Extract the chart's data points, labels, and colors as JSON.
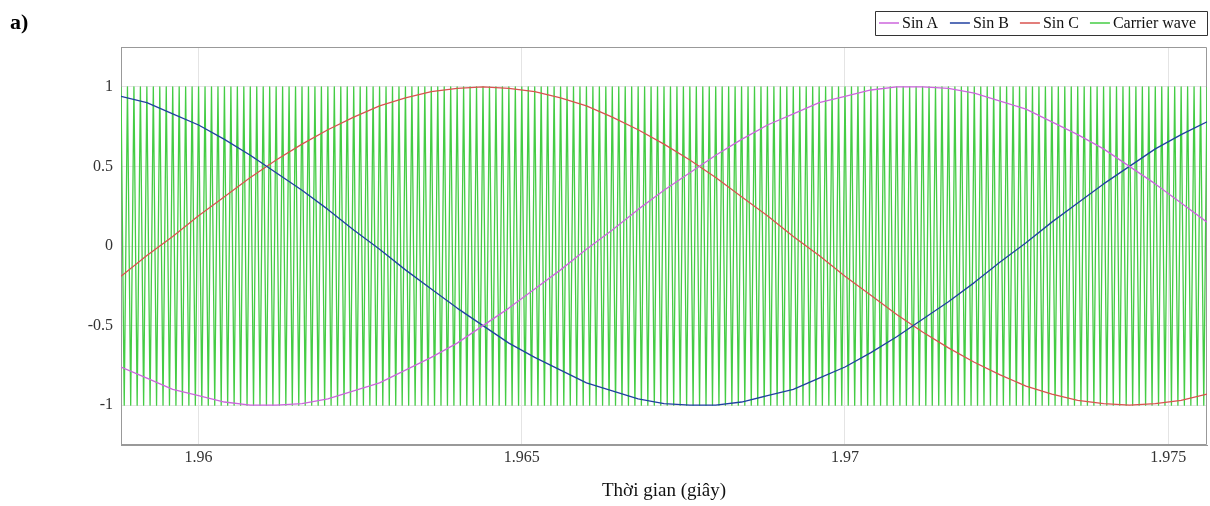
{
  "chart_data": {
    "type": "line",
    "annotations": [
      "a)"
    ],
    "xlabel": "Thời gian (giây)",
    "xlim": [
      1.9588,
      1.9756
    ],
    "xticks": [
      1.96,
      1.965,
      1.97,
      1.975
    ],
    "ylim": [
      -1.25,
      1.25
    ],
    "yticks": [
      -1,
      -0.5,
      0,
      0.5,
      1
    ],
    "grid": true,
    "legend": "top right",
    "marker": "none",
    "line_style": "solid",
    "x": [
      1.9588,
      1.9592,
      1.9596,
      1.96,
      1.9604,
      1.9608,
      1.9612,
      1.9616,
      1.962,
      1.9624,
      1.9628,
      1.9632,
      1.9636,
      1.964,
      1.9644,
      1.9648,
      1.9652,
      1.9656,
      1.966,
      1.9664,
      1.9668,
      1.9672,
      1.9676,
      1.968,
      1.9684,
      1.9688,
      1.9692,
      1.9696,
      1.97,
      1.9704,
      1.9708,
      1.9712,
      1.9716,
      1.972,
      1.9724,
      1.9728,
      1.9732,
      1.9736,
      1.974,
      1.9744,
      1.9748,
      1.9752,
      1.9756
    ],
    "series": [
      {
        "name": "Sin A",
        "color": "#cc66dd",
        "values": [
          -0.76,
          -0.83,
          -0.9,
          -0.94,
          -0.98,
          -1,
          -1,
          -0.99,
          -0.96,
          -0.91,
          -0.86,
          -0.78,
          -0.7,
          -0.61,
          -0.5,
          -0.39,
          -0.27,
          -0.15,
          -0.02,
          0.1,
          0.23,
          0.35,
          0.46,
          0.57,
          0.67,
          0.76,
          0.83,
          0.9,
          0.94,
          0.98,
          1,
          1,
          0.99,
          0.96,
          0.91,
          0.86,
          0.78,
          0.7,
          0.61,
          0.5,
          0.39,
          0.27,
          0.15
        ]
      },
      {
        "name": "Sin B",
        "color": "#2040a0",
        "values": [
          0.94,
          0.9,
          0.83,
          0.76,
          0.67,
          0.57,
          0.46,
          0.35,
          0.23,
          0.1,
          -0.02,
          -0.15,
          -0.27,
          -0.39,
          -0.5,
          -0.61,
          -0.7,
          -0.78,
          -0.86,
          -0.91,
          -0.96,
          -0.99,
          -1,
          -1,
          -0.98,
          -0.94,
          -0.9,
          -0.83,
          -0.76,
          -0.67,
          -0.57,
          -0.46,
          -0.35,
          -0.23,
          -0.1,
          0.02,
          0.15,
          0.27,
          0.39,
          0.5,
          0.61,
          0.7,
          0.78
        ]
      },
      {
        "name": "Sin C",
        "color": "#d9534f",
        "values": [
          -0.19,
          -0.06,
          0.06,
          0.19,
          0.31,
          0.43,
          0.54,
          0.64,
          0.73,
          0.81,
          0.88,
          0.93,
          0.97,
          0.99,
          1,
          0.99,
          0.97,
          0.93,
          0.88,
          0.81,
          0.73,
          0.64,
          0.54,
          0.43,
          0.31,
          0.19,
          0.06,
          -0.06,
          -0.19,
          -0.31,
          -0.43,
          -0.54,
          -0.64,
          -0.73,
          -0.81,
          -0.88,
          -0.93,
          -0.97,
          -0.99,
          -1,
          -0.99,
          -0.97,
          -0.93
        ]
      },
      {
        "name": "Carrier wave",
        "color": "#44cc44",
        "x": [
          1.9588,
          1.95885,
          1.9589,
          1.95895,
          1.959,
          1.95905,
          1.9591,
          1.95915,
          1.9592,
          1.95925,
          1.9593,
          1.95935,
          1.9594,
          1.95945,
          1.9595,
          1.95955,
          1.9596,
          1.95965,
          1.9597,
          1.95975,
          1.9598,
          1.95985,
          1.9599,
          1.95995,
          1.96,
          1.96005,
          1.9601,
          1.96015,
          1.9602,
          1.96025,
          1.9603,
          1.96035,
          1.9604,
          1.96045,
          1.9605,
          1.96055,
          1.9606,
          1.96065,
          1.9607,
          1.96075,
          1.9608,
          1.96085,
          1.9609,
          1.96095,
          1.961,
          1.96105,
          1.9611,
          1.96115,
          1.9612,
          1.96125,
          1.9613,
          1.96135,
          1.9614,
          1.96145,
          1.9615,
          1.96155,
          1.9616,
          1.96165,
          1.9617,
          1.96175,
          1.9618,
          1.96185,
          1.9619,
          1.96195,
          1.962,
          1.96205,
          1.9621,
          1.96215,
          1.9622,
          1.96225,
          1.9623,
          1.96235,
          1.9624,
          1.96245,
          1.9625,
          1.96255,
          1.9626,
          1.96265,
          1.9627,
          1.96275,
          1.9628,
          1.96285,
          1.9629,
          1.96295,
          1.963,
          1.96305,
          1.9631,
          1.96315,
          1.9632,
          1.96325,
          1.9633,
          1.96335,
          1.9634,
          1.96345,
          1.9635,
          1.96355,
          1.9636,
          1.96365,
          1.9637,
          1.96375,
          1.9638,
          1.96385,
          1.9639,
          1.96395,
          1.964,
          1.96405,
          1.9641,
          1.96415,
          1.9642,
          1.96425,
          1.9643,
          1.96435,
          1.9644,
          1.96445,
          1.9645,
          1.96455,
          1.9646,
          1.96465,
          1.9647,
          1.96475,
          1.9648,
          1.96485,
          1.9649,
          1.96495,
          1.965,
          1.96505,
          1.9651,
          1.96515,
          1.9652,
          1.96525,
          1.9653,
          1.96535,
          1.9654,
          1.96545,
          1.9655,
          1.96555,
          1.9656,
          1.96565,
          1.9657,
          1.96575,
          1.9658,
          1.96585,
          1.9659,
          1.96595,
          1.966,
          1.96605,
          1.9661,
          1.96615,
          1.9662,
          1.96625,
          1.9663,
          1.96635,
          1.9664,
          1.96645,
          1.9665,
          1.96655,
          1.9666,
          1.96665,
          1.9667,
          1.96675,
          1.9668,
          1.96685,
          1.9669,
          1.96695,
          1.967,
          1.96705,
          1.9671,
          1.96715,
          1.9672,
          1.96725,
          1.9673,
          1.96735,
          1.9674,
          1.96745,
          1.9675,
          1.96755,
          1.9676,
          1.96765,
          1.9677,
          1.96775,
          1.9678,
          1.96785,
          1.9679,
          1.96795,
          1.968,
          1.96805,
          1.9681,
          1.96815,
          1.9682,
          1.96825,
          1.9683,
          1.96835,
          1.9684,
          1.96845,
          1.9685,
          1.96855,
          1.9686,
          1.96865,
          1.9687,
          1.96875,
          1.9688,
          1.96885,
          1.9689,
          1.96895,
          1.969,
          1.96905,
          1.9691,
          1.96915,
          1.9692,
          1.96925,
          1.9693,
          1.96935,
          1.9694,
          1.96945,
          1.9695,
          1.96955,
          1.9696,
          1.96965,
          1.9697,
          1.96975,
          1.9698,
          1.96985,
          1.9699,
          1.96995,
          1.97,
          1.97005,
          1.9701,
          1.97015,
          1.9702,
          1.97025,
          1.9703,
          1.97035,
          1.9704,
          1.97045,
          1.9705,
          1.97055,
          1.9706,
          1.97065,
          1.9707,
          1.97075,
          1.9708,
          1.97085,
          1.9709,
          1.97095,
          1.971,
          1.97105,
          1.9711,
          1.97115,
          1.9712,
          1.97125,
          1.9713,
          1.97135,
          1.9714,
          1.97145,
          1.9715,
          1.97155,
          1.9716,
          1.97165,
          1.9717,
          1.97175,
          1.9718,
          1.97185,
          1.9719,
          1.97195,
          1.972,
          1.97205,
          1.9721,
          1.97215,
          1.9722,
          1.97225,
          1.9723,
          1.97235,
          1.9724,
          1.97245,
          1.9725,
          1.97255,
          1.9726,
          1.97265,
          1.9727,
          1.97275,
          1.9728,
          1.97285,
          1.9729,
          1.97295,
          1.973,
          1.97305,
          1.9731,
          1.97315,
          1.9732,
          1.97325,
          1.9733,
          1.97335,
          1.9734,
          1.97345,
          1.9735,
          1.97355,
          1.9736,
          1.97365,
          1.9737,
          1.97375,
          1.9738,
          1.97385,
          1.9739,
          1.97395,
          1.974,
          1.97405,
          1.9741,
          1.97415,
          1.9742,
          1.97425,
          1.9743,
          1.97435,
          1.9744,
          1.97445,
          1.9745,
          1.97455,
          1.9746,
          1.97465,
          1.9747,
          1.97475,
          1.9748,
          1.97485,
          1.9749,
          1.97495,
          1.975,
          1.97505,
          1.9751,
          1.97515,
          1.9752,
          1.97525,
          1.9753,
          1.97535,
          1.9754,
          1.97545,
          1.9755,
          1.97555,
          1.9756
        ],
        "values": [
          1,
          -1,
          1,
          -1,
          1,
          -1,
          1,
          -1,
          1,
          -1,
          1,
          -1,
          1,
          -1,
          1,
          -1,
          1,
          -1,
          1,
          -1,
          1,
          -1,
          1,
          -1,
          1,
          -1,
          1,
          -1,
          1,
          -1,
          1,
          -1,
          1,
          -1,
          1,
          -1,
          1,
          -1,
          1,
          -1,
          1,
          -1,
          1,
          -1,
          1,
          -1,
          1,
          -1,
          1,
          -1,
          1,
          -1,
          1,
          -1,
          1,
          -1,
          1,
          -1,
          1,
          -1,
          1,
          -1,
          1,
          -1,
          1,
          -1,
          1,
          -1,
          1,
          -1,
          1,
          -1,
          1,
          -1,
          1,
          -1,
          1,
          -1,
          1,
          -1,
          1,
          -1,
          1,
          -1,
          1,
          -1,
          1,
          -1,
          1,
          -1,
          1,
          -1,
          1,
          -1,
          1,
          -1,
          1,
          -1,
          1,
          -1,
          1,
          -1,
          1,
          -1,
          1,
          -1,
          1,
          -1,
          1,
          -1,
          1,
          -1,
          1,
          -1,
          1,
          -1,
          1,
          -1,
          1,
          -1,
          1,
          -1,
          1,
          -1,
          1,
          -1,
          1,
          -1,
          1,
          -1,
          1,
          -1,
          1,
          -1,
          1,
          -1,
          1,
          -1,
          1,
          -1,
          1,
          -1,
          1,
          -1,
          1,
          -1,
          1,
          -1,
          1,
          -1,
          1,
          -1,
          1,
          -1,
          1,
          -1,
          1,
          -1,
          1,
          -1,
          1,
          -1,
          1,
          -1,
          1,
          -1,
          1,
          -1,
          1,
          -1,
          1,
          -1,
          1,
          -1,
          1,
          -1,
          1,
          -1,
          1,
          -1,
          1,
          -1,
          1,
          -1,
          1,
          -1,
          1,
          -1,
          1,
          -1,
          1,
          -1,
          1,
          -1,
          1,
          -1,
          1,
          -1,
          1,
          -1,
          1,
          -1,
          1,
          -1,
          1,
          -1,
          1,
          -1,
          1,
          -1,
          1,
          -1,
          1,
          -1,
          1,
          -1,
          1,
          -1,
          1,
          -1,
          1,
          -1,
          1,
          -1,
          1,
          -1,
          1,
          -1,
          1,
          -1,
          1,
          -1,
          1,
          -1,
          1,
          -1,
          1,
          -1,
          1,
          -1,
          1,
          -1,
          1,
          -1,
          1,
          -1,
          1,
          -1,
          1,
          -1,
          1,
          -1,
          1,
          -1,
          1,
          -1,
          1,
          -1,
          1,
          -1,
          1,
          -1,
          1,
          -1,
          1,
          -1,
          1,
          -1,
          1,
          -1,
          1,
          -1,
          1,
          -1,
          1,
          -1,
          1,
          -1,
          1,
          -1,
          1,
          -1,
          1,
          -1,
          1,
          -1,
          1,
          -1,
          1,
          -1,
          1,
          -1,
          1,
          -1,
          1,
          -1,
          1,
          -1,
          1,
          -1,
          1,
          -1,
          1,
          -1,
          1,
          -1,
          1,
          -1,
          1,
          -1,
          1,
          -1,
          1,
          -1,
          1,
          -1,
          1,
          -1,
          1,
          -1,
          1,
          -1,
          1,
          -1,
          1,
          -1,
          1,
          -1,
          1,
          -1,
          1,
          -1,
          1,
          -1,
          1,
          -1,
          1
        ]
      }
    ]
  }
}
